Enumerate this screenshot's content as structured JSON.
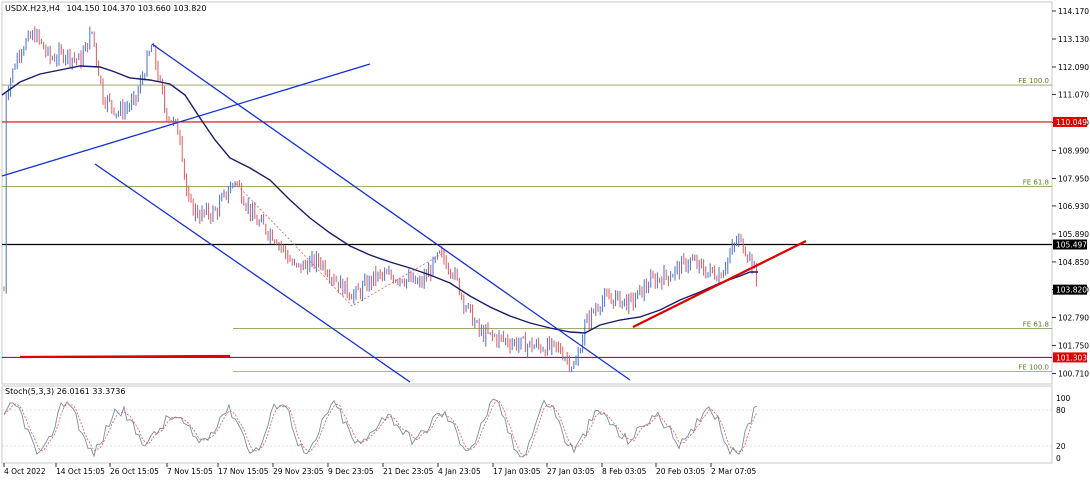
{
  "header": {
    "symbol": "USDX.H23,H4",
    "ohlc": "104.150 104.370 103.660 103.820"
  },
  "colors": {
    "candle_up": "#4a6fd4",
    "candle_down": "#e05a5a",
    "moving_average": "#1a1a6e",
    "channel_lines": "#1430d8",
    "resistance_red": "#e00000",
    "fib_line": "#8aa05a",
    "horizontal_level": "#000000",
    "price_tag_red": "#e00000",
    "price_tag_black": "#000000"
  },
  "price_axis": {
    "ticks": [
      "114.170",
      "113.130",
      "112.090",
      "111.070",
      "110.030",
      "108.990",
      "107.950",
      "106.930",
      "105.890",
      "104.850",
      "103.820",
      "102.790",
      "101.750",
      "100.710"
    ],
    "current_price_tag": "103.820"
  },
  "levels": [
    {
      "label": "110.049",
      "price": 110.049,
      "kind": "red"
    },
    {
      "label": "105.497",
      "price": 105.497,
      "kind": "black"
    },
    {
      "label": "101.303",
      "price": 101.303,
      "kind": "red"
    }
  ],
  "fib_levels": [
    {
      "label": "FE 100.0",
      "price": 111.42
    },
    {
      "label": "FE 61.8",
      "price": 107.65
    },
    {
      "label": "FE 61.8",
      "price": 102.38
    },
    {
      "label": "FE 100.0",
      "price": 100.78
    }
  ],
  "indicator": {
    "label": "Stoch(5,3,3) 26.0161 33.3736",
    "axis_ticks": [
      "100",
      "80",
      "20",
      "0"
    ]
  },
  "time_axis": {
    "labels": [
      "4 Oct 2022",
      "14 Oct 15:05",
      "26 Oct 15:05",
      "7 Nov 15:05",
      "17 Nov 15:05",
      "29 Nov 23:05",
      "9 Dec 23:05",
      "21 Dec 23:05",
      "4 Jan 23:05",
      "17 Jan 03:05",
      "27 Jan 03:05",
      "8 Feb 03:05",
      "20 Feb 03:05",
      "2 Mar 07:05"
    ]
  },
  "chart_data": {
    "type": "candlestick",
    "symbol": "USDX.H23",
    "timeframe": "H4",
    "last_bar": {
      "open": 104.15,
      "high": 104.37,
      "low": 103.66,
      "close": 103.82
    },
    "price_range": [
      100.3,
      114.5
    ],
    "approx_close_path": [
      {
        "t": "4 Oct 2022",
        "close": 111.0
      },
      {
        "t": "14 Oct 15:05",
        "close": 113.0
      },
      {
        "t": "26 Oct 15:05",
        "close": 110.6
      },
      {
        "t": "7 Nov 15:05",
        "close": 109.3
      },
      {
        "t": "17 Nov 15:05",
        "close": 107.0
      },
      {
        "t": "29 Nov 23:05",
        "close": 105.2
      },
      {
        "t": "9 Dec 23:05",
        "close": 104.0
      },
      {
        "t": "21 Dec 23:05",
        "close": 104.3
      },
      {
        "t": "4 Jan 23:05",
        "close": 104.6
      },
      {
        "t": "17 Jan 03:05",
        "close": 101.9
      },
      {
        "t": "27 Jan 03:05",
        "close": 101.7
      },
      {
        "t": "8 Feb 03:05",
        "close": 103.1
      },
      {
        "t": "20 Feb 03:05",
        "close": 104.4
      },
      {
        "t": "2 Mar 07:05",
        "close": 105.3
      }
    ]
  }
}
